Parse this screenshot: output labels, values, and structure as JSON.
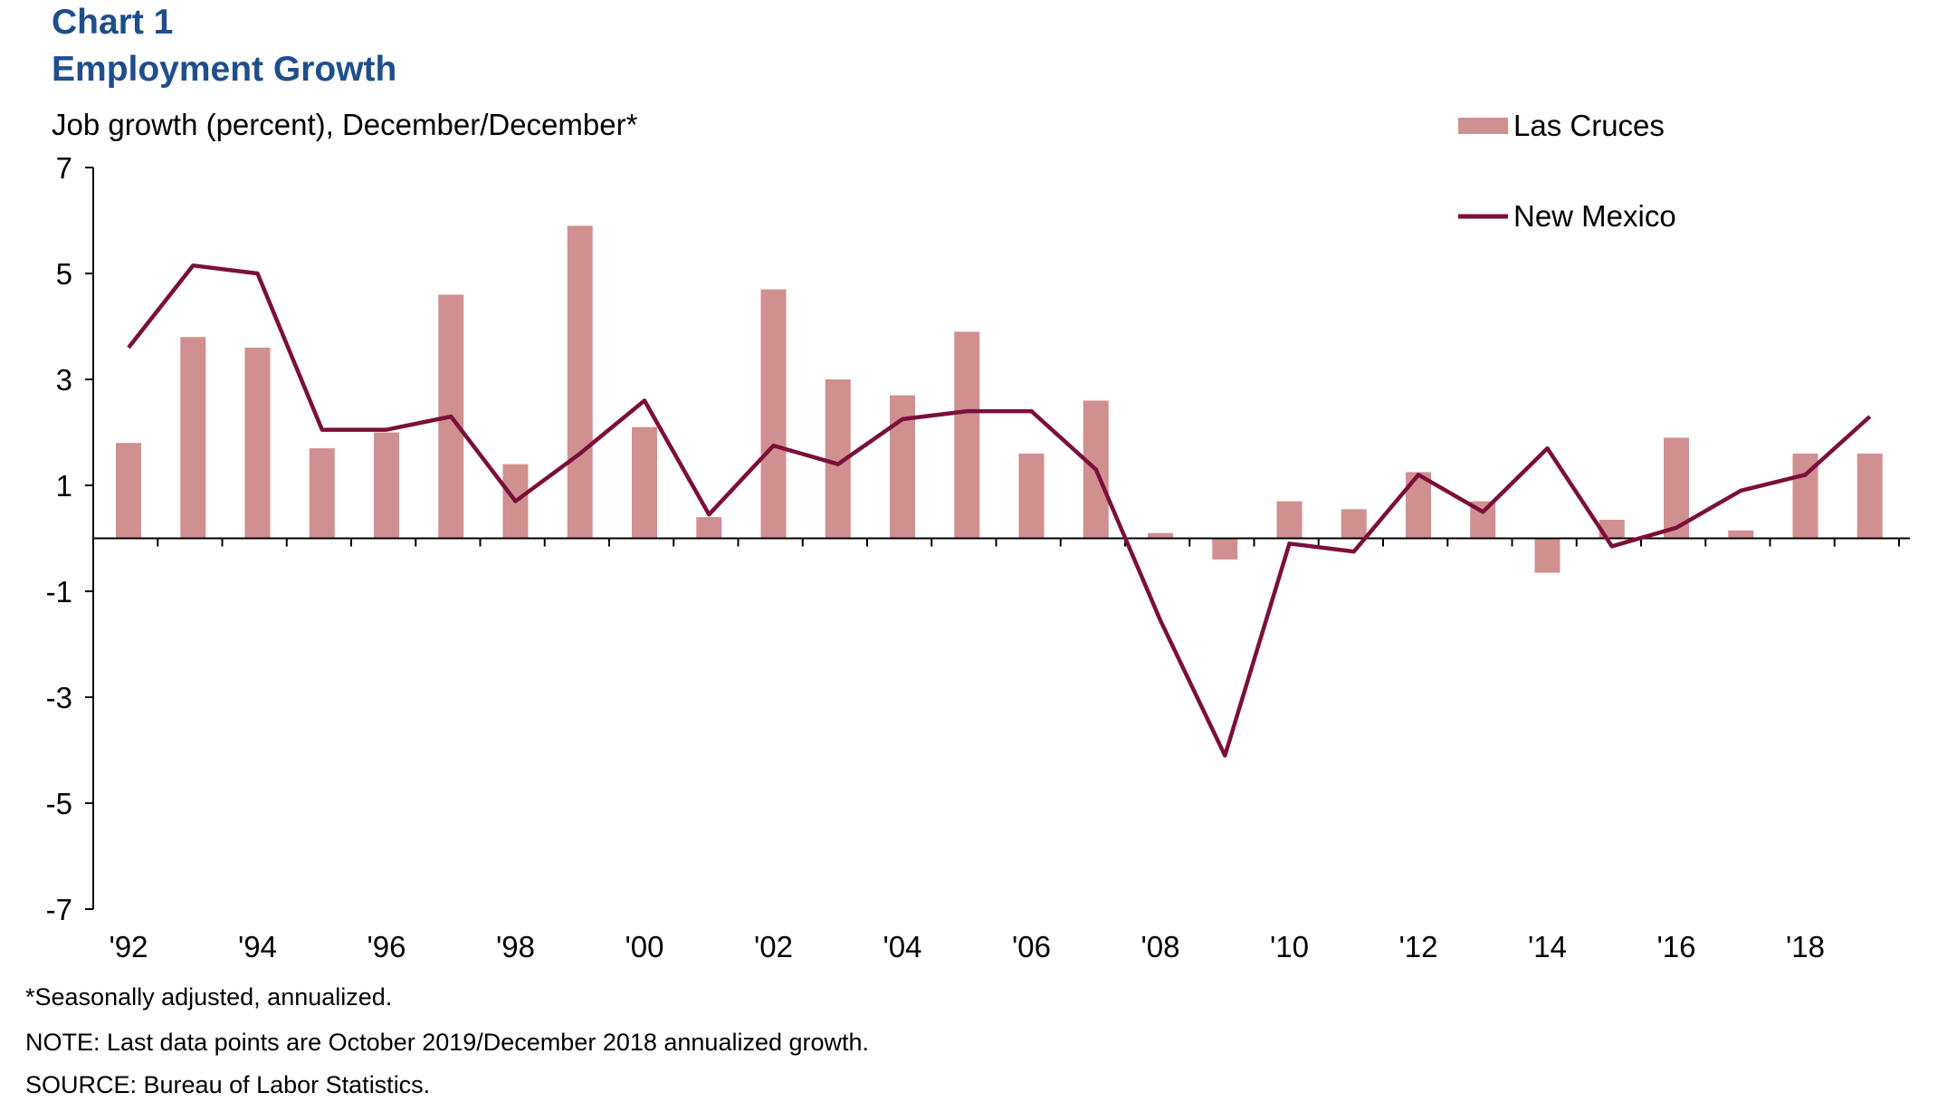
{
  "chart_data": {
    "type": "bar+line",
    "title": "Chart 1",
    "subtitle": "Employment Growth",
    "ylabel": "Job growth (percent), December/December*",
    "xlabel": "",
    "ylim": [
      -7,
      7
    ],
    "yticks": [
      "7",
      "5",
      "3",
      "1",
      "-1",
      "-3",
      "-5",
      "-7"
    ],
    "ytick_values": [
      7,
      5,
      3,
      1,
      -1,
      -3,
      -5,
      -7
    ],
    "x": [
      1992,
      1993,
      1994,
      1995,
      1996,
      1997,
      1998,
      1999,
      2000,
      2001,
      2002,
      2003,
      2004,
      2005,
      2006,
      2007,
      2008,
      2009,
      2010,
      2011,
      2012,
      2013,
      2014,
      2015,
      2016,
      2017,
      2018,
      2019
    ],
    "xticks": [
      "'92",
      "'94",
      "'96",
      "'98",
      "'00",
      "'02",
      "'04",
      "'06",
      "'08",
      "'10",
      "'12",
      "'14",
      "'16",
      "'18"
    ],
    "xtick_years": [
      1992,
      1994,
      1996,
      1998,
      2000,
      2002,
      2004,
      2006,
      2008,
      2010,
      2012,
      2014,
      2016,
      2018
    ],
    "series": [
      {
        "name": "Las Cruces",
        "kind": "bar",
        "color": "#d09090",
        "values": [
          1.8,
          3.8,
          3.6,
          1.7,
          2.0,
          4.6,
          1.4,
          5.9,
          2.1,
          0.4,
          4.7,
          3.0,
          2.7,
          3.9,
          1.6,
          2.6,
          0.1,
          -0.4,
          0.7,
          0.55,
          1.25,
          0.7,
          -0.65,
          0.35,
          1.9,
          0.15,
          1.6,
          1.6
        ]
      },
      {
        "name": "New Mexico",
        "kind": "line",
        "color": "#7b0f3a",
        "values": [
          3.6,
          5.15,
          5.0,
          2.05,
          2.05,
          2.3,
          0.7,
          1.6,
          2.6,
          0.45,
          1.75,
          1.4,
          2.25,
          2.4,
          2.4,
          1.3,
          -1.55,
          -4.1,
          -0.1,
          -0.25,
          1.2,
          0.5,
          1.7,
          -0.15,
          0.2,
          0.9,
          1.2,
          2.3
        ]
      }
    ],
    "legend": "top-right",
    "grid": false
  },
  "footnotes": {
    "note1": "*Seasonally adjusted, annualized.",
    "note2": "NOTE: Last data points are October 2019/December 2018 annualized growth.",
    "note3": "SOURCE: Bureau of Labor Statistics."
  }
}
